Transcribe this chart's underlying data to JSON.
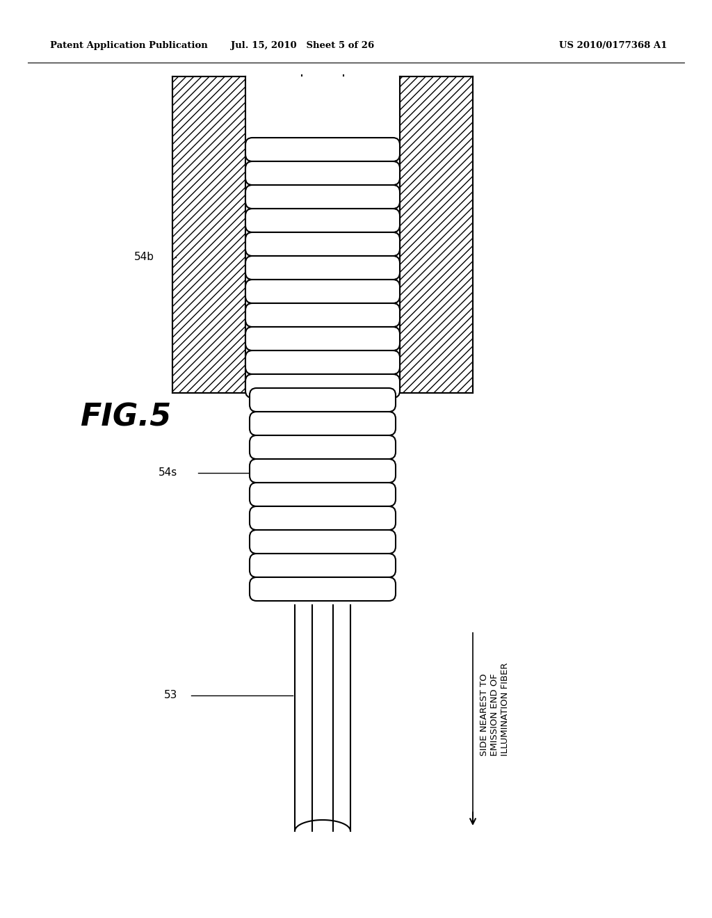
{
  "bg_color": "#ffffff",
  "header_left": "Patent Application Publication",
  "header_mid": "Jul. 15, 2010   Sheet 5 of 26",
  "header_right": "US 2010/0177368 A1",
  "fig_label": "FIG.5",
  "label_54b": "54b",
  "label_54s": "54s",
  "label_53": "53",
  "side_text_line1": "SIDE NEAREST TO",
  "side_text_line2": "EMISSION END OF",
  "side_text_line3": "ILLUMINATION FIBER",
  "line_color": "#000000"
}
